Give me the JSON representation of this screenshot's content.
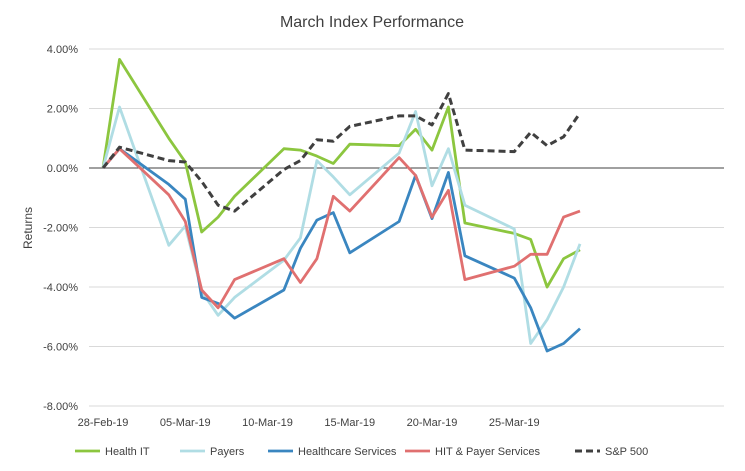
{
  "chart_data": {
    "type": "line",
    "title": "March Index Performance",
    "xlabel": "",
    "ylabel": "Returns",
    "ylim": [
      -0.08,
      0.04
    ],
    "y_ticks": [
      {
        "value": 0.04,
        "label": "4.00%"
      },
      {
        "value": 0.02,
        "label": "2.00%"
      },
      {
        "value": 0.0,
        "label": "0.00%"
      },
      {
        "value": -0.02,
        "label": "-2.00%"
      },
      {
        "value": -0.04,
        "label": "-4.00%"
      },
      {
        "value": -0.06,
        "label": "-6.00%"
      },
      {
        "value": -0.08,
        "label": "-8.00%"
      }
    ],
    "x_ticks": [
      "28-Feb-19",
      "05-Mar-19",
      "10-Mar-19",
      "15-Mar-19",
      "20-Mar-19",
      "25-Mar-19"
    ],
    "x": [
      "28-Feb-19",
      "01-Mar-19",
      "04-Mar-19",
      "05-Mar-19",
      "06-Mar-19",
      "07-Mar-19",
      "08-Mar-19",
      "11-Mar-19",
      "12-Mar-19",
      "13-Mar-19",
      "14-Mar-19",
      "15-Mar-19",
      "18-Mar-19",
      "19-Mar-19",
      "20-Mar-19",
      "21-Mar-19",
      "22-Mar-19",
      "25-Mar-19",
      "26-Mar-19",
      "27-Mar-19",
      "28-Mar-19",
      "29-Mar-19"
    ],
    "grid": "horizontal",
    "legend_position": "bottom",
    "series": [
      {
        "name": "Health IT",
        "color": "#8cc63f",
        "dash": "solid",
        "values": [
          0.0,
          0.0365,
          0.01,
          0.002,
          -0.0215,
          -0.0165,
          -0.0095,
          0.0065,
          0.006,
          0.004,
          0.0015,
          0.008,
          0.0075,
          0.013,
          0.006,
          0.0205,
          -0.0185,
          -0.022,
          -0.024,
          -0.04,
          -0.0305,
          -0.0275
        ]
      },
      {
        "name": "Payers",
        "color": "#b0dde4",
        "dash": "solid",
        "values": [
          0.0,
          0.0205,
          -0.026,
          -0.0195,
          -0.0415,
          -0.0495,
          -0.0435,
          -0.031,
          -0.0235,
          0.0025,
          -0.003,
          -0.009,
          0.005,
          0.019,
          -0.006,
          0.0065,
          -0.0125,
          -0.0205,
          -0.059,
          -0.051,
          -0.04,
          -0.0255
        ]
      },
      {
        "name": "Healthcare Services",
        "color": "#3a86c0",
        "dash": "solid",
        "values": [
          0.0,
          0.0065,
          -0.0055,
          -0.0105,
          -0.0435,
          -0.0455,
          -0.0505,
          -0.041,
          -0.027,
          -0.0175,
          -0.015,
          -0.0285,
          -0.018,
          -0.0025,
          -0.017,
          -0.0015,
          -0.0295,
          -0.037,
          -0.047,
          -0.0615,
          -0.059,
          -0.054
        ]
      },
      {
        "name": "HIT & Payer Services",
        "color": "#e07070",
        "dash": "solid",
        "values": [
          0.0,
          0.0065,
          -0.009,
          -0.018,
          -0.041,
          -0.047,
          -0.0375,
          -0.0305,
          -0.0385,
          -0.0305,
          -0.0095,
          -0.0145,
          0.0035,
          -0.0025,
          -0.0165,
          -0.0075,
          -0.0375,
          -0.033,
          -0.029,
          -0.029,
          -0.0165,
          -0.0145
        ]
      },
      {
        "name": "S&P 500",
        "color": "#404040",
        "dash": "dashed",
        "values": [
          0.0,
          0.007,
          0.0025,
          0.002,
          -0.0045,
          -0.0125,
          -0.0145,
          -0.0005,
          0.0025,
          0.0095,
          0.009,
          0.014,
          0.0175,
          0.0175,
          0.0145,
          0.025,
          0.006,
          0.0055,
          0.012,
          0.0075,
          0.0105,
          0.0185
        ]
      }
    ]
  }
}
